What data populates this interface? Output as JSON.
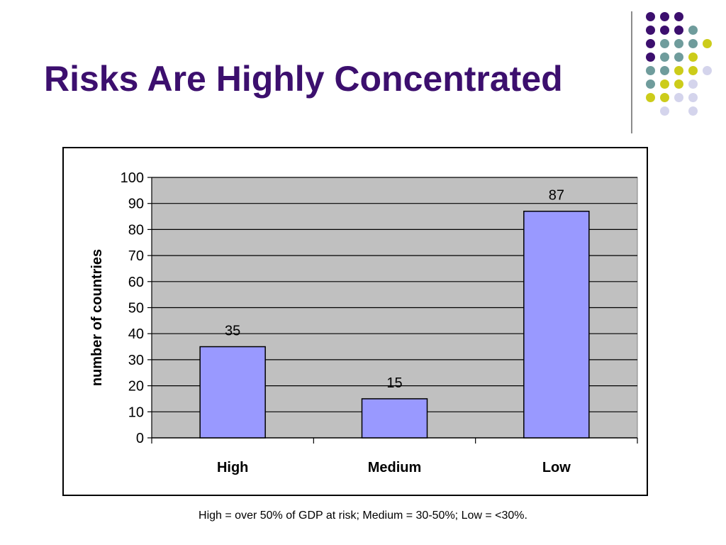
{
  "slide": {
    "title": "Risks Are Highly Concentrated",
    "footnote": "High = over 50% of GDP at risk; Medium = 30-50%; Low = <30%."
  },
  "decoration": {
    "dot_colors": {
      "purple": "#3c0f6e",
      "teal": "#6f9c9c",
      "yellow": "#cccc1a",
      "lavender": "#d4d4ec"
    }
  },
  "chart_data": {
    "type": "bar",
    "categories": [
      "High",
      "Medium",
      "Low"
    ],
    "values": [
      35,
      15,
      87
    ],
    "data_labels": [
      "35",
      "15",
      "87"
    ],
    "title": "",
    "xlabel": "",
    "ylabel": "number of countries",
    "ylim": [
      0,
      100
    ],
    "yticks": [
      "0",
      "10",
      "20",
      "30",
      "40",
      "50",
      "60",
      "70",
      "80",
      "90",
      "100"
    ],
    "grid": true,
    "legend": "none",
    "colors": {
      "bar": "#9999ff",
      "plot_bg": "#c0c0c0",
      "grid": "#000000"
    }
  }
}
